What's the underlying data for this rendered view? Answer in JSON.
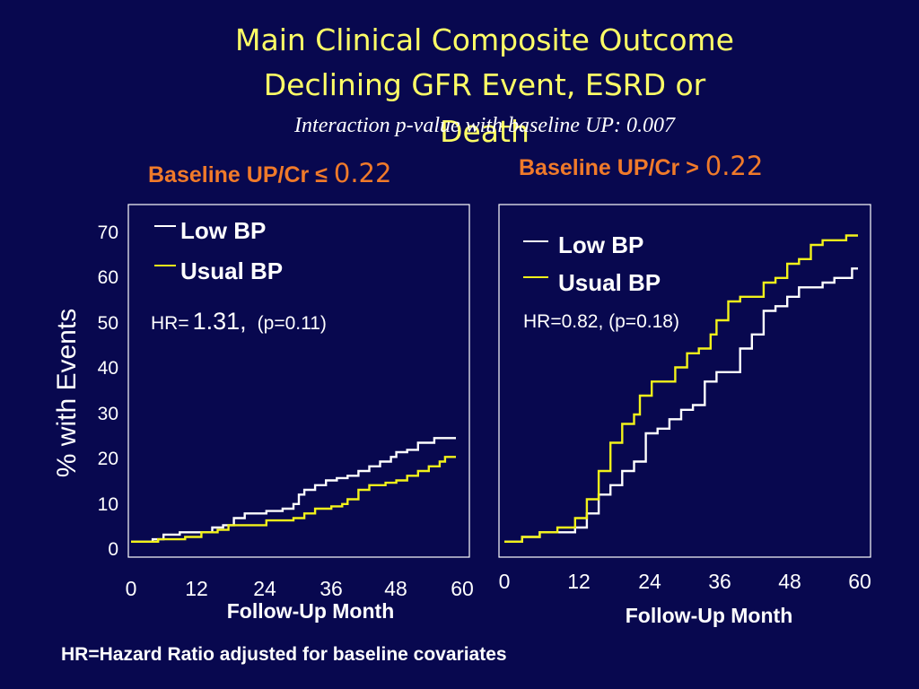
{
  "title_line1": "Main Clinical Composite Outcome",
  "title_line2": "Declining GFR Event, ESRD or",
  "title_line3": "Death",
  "subtitle": "Interaction p-value with baseline UP: 0.007",
  "ylabel": "% with Events",
  "footnote": "HR=Hazard Ratio adjusted for baseline covariates",
  "colors": {
    "background": "#08084f",
    "low_bp": "#ffffff",
    "usual_bp": "#f2f21a",
    "panel_title": "#f07a2a",
    "title": "#ffff66"
  },
  "chart_data": [
    {
      "type": "line",
      "title_prefix": "Baseline UP/Cr",
      "title_op": "≤",
      "title_value": "0.22",
      "xlabel": "Follow-Up Month",
      "xticks": [
        0,
        12,
        24,
        36,
        48,
        60
      ],
      "xlim": [
        0,
        60
      ],
      "yticks": [
        0,
        10,
        20,
        30,
        40,
        50,
        60,
        70
      ],
      "ylim": [
        0,
        72
      ],
      "legend_position": "top-left",
      "hr_prefix": "HR=",
      "hr_value": "1.31,",
      "hr_p": "(p=0.11)",
      "series": [
        {
          "name": "Low BP",
          "color": "#ffffff",
          "points": [
            [
              0,
              1
            ],
            [
              4,
              1.5
            ],
            [
              6,
              2.5
            ],
            [
              9,
              3
            ],
            [
              14,
              3
            ],
            [
              15,
              4
            ],
            [
              17,
              4.5
            ],
            [
              19,
              6
            ],
            [
              21,
              7
            ],
            [
              24,
              7
            ],
            [
              25,
              7.5
            ],
            [
              28,
              8
            ],
            [
              30,
              9
            ],
            [
              31,
              11
            ],
            [
              32,
              12
            ],
            [
              34,
              13
            ],
            [
              36,
              14
            ],
            [
              38,
              14.5
            ],
            [
              40,
              15
            ],
            [
              42,
              16
            ],
            [
              44,
              17
            ],
            [
              46,
              18
            ],
            [
              48,
              19
            ],
            [
              49,
              20
            ],
            [
              51,
              20.5
            ],
            [
              53,
              22
            ],
            [
              55,
              22
            ],
            [
              56,
              23
            ],
            [
              60,
              23
            ]
          ]
        },
        {
          "name": "Usual BP",
          "color": "#f2f21a",
          "points": [
            [
              0,
              1
            ],
            [
              5,
              1.5
            ],
            [
              10,
              2
            ],
            [
              13,
              3
            ],
            [
              16,
              3.5
            ],
            [
              18,
              4.5
            ],
            [
              23,
              4.5
            ],
            [
              25,
              5.5
            ],
            [
              30,
              6
            ],
            [
              32,
              7
            ],
            [
              34,
              8
            ],
            [
              37,
              8.5
            ],
            [
              39,
              9
            ],
            [
              40,
              10
            ],
            [
              42,
              12
            ],
            [
              44,
              13
            ],
            [
              47,
              13.5
            ],
            [
              49,
              14
            ],
            [
              51,
              15
            ],
            [
              53,
              16
            ],
            [
              55,
              17
            ],
            [
              57,
              18
            ],
            [
              58,
              19
            ],
            [
              60,
              19
            ]
          ]
        }
      ]
    },
    {
      "type": "line",
      "title_prefix": "Baseline UP/Cr",
      "title_op": ">",
      "title_value": "0.22",
      "xlabel": "Follow-Up Month",
      "xticks": [
        0,
        12,
        24,
        36,
        48,
        60
      ],
      "xlim": [
        0,
        60
      ],
      "yticks": [],
      "ylim": [
        0,
        72
      ],
      "legend_position": "top-left",
      "hr_text": "HR=0.82, (p=0.18)",
      "series": [
        {
          "name": "Low BP",
          "color": "#ffffff",
          "points": [
            [
              0,
              1
            ],
            [
              3,
              2
            ],
            [
              6,
              3
            ],
            [
              9,
              3
            ],
            [
              12,
              4
            ],
            [
              14,
              7
            ],
            [
              16,
              11
            ],
            [
              18,
              13
            ],
            [
              20,
              16
            ],
            [
              22,
              18
            ],
            [
              24,
              24
            ],
            [
              26,
              25
            ],
            [
              28,
              27
            ],
            [
              30,
              29
            ],
            [
              32,
              30
            ],
            [
              34,
              35
            ],
            [
              36,
              37
            ],
            [
              38,
              37
            ],
            [
              40,
              42
            ],
            [
              42,
              45
            ],
            [
              44,
              50
            ],
            [
              46,
              51
            ],
            [
              48,
              53
            ],
            [
              50,
              55
            ],
            [
              52,
              55
            ],
            [
              54,
              56
            ],
            [
              56,
              57
            ],
            [
              58,
              57
            ],
            [
              59,
              59
            ],
            [
              60,
              59
            ]
          ]
        },
        {
          "name": "Usual BP",
          "color": "#f2f21a",
          "points": [
            [
              0,
              1
            ],
            [
              3,
              2
            ],
            [
              6,
              3
            ],
            [
              9,
              4
            ],
            [
              12,
              6
            ],
            [
              14,
              10
            ],
            [
              16,
              16
            ],
            [
              18,
              22
            ],
            [
              20,
              26
            ],
            [
              22,
              28
            ],
            [
              23,
              32
            ],
            [
              25,
              35
            ],
            [
              27,
              35
            ],
            [
              29,
              38
            ],
            [
              31,
              41
            ],
            [
              33,
              42
            ],
            [
              35,
              45
            ],
            [
              36,
              48
            ],
            [
              38,
              52
            ],
            [
              40,
              53
            ],
            [
              42,
              53
            ],
            [
              44,
              56
            ],
            [
              46,
              57
            ],
            [
              48,
              60
            ],
            [
              50,
              61
            ],
            [
              52,
              64
            ],
            [
              54,
              65
            ],
            [
              56,
              65
            ],
            [
              58,
              66
            ],
            [
              60,
              66
            ]
          ]
        }
      ]
    }
  ]
}
